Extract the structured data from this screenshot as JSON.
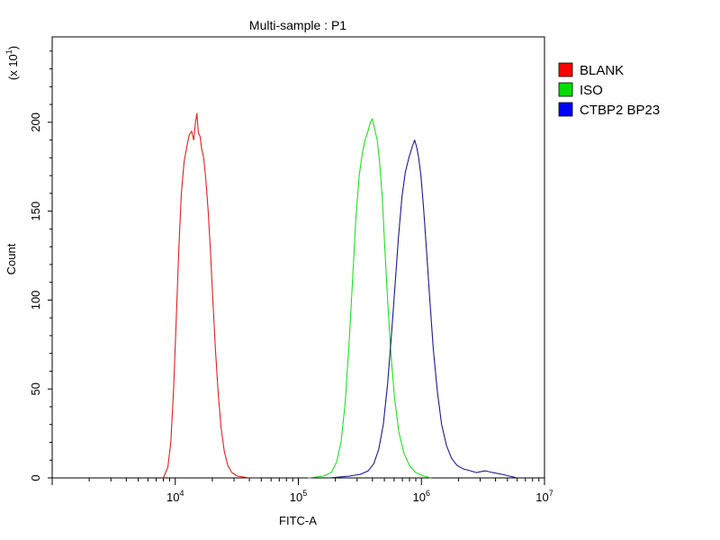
{
  "chart_data": {
    "type": "line",
    "title": "Multi-sample : P1",
    "xlabel": "FITC-A",
    "ylabel": "Count",
    "y_multiplier_label": "(x 10",
    "y_multiplier_exp": "1",
    "x_scale": "log",
    "xlim": [
      1000,
      10000000
    ],
    "ylim": [
      0,
      248
    ],
    "x_ticks": [
      {
        "value": 10000,
        "base": "10",
        "exp": "4"
      },
      {
        "value": 100000,
        "base": "10",
        "exp": "5"
      },
      {
        "value": 1000000,
        "base": "10",
        "exp": "6"
      },
      {
        "value": 10000000,
        "base": "10",
        "exp": "7"
      }
    ],
    "y_ticks": [
      {
        "value": 0,
        "label": "0"
      },
      {
        "value": 50,
        "label": "50"
      },
      {
        "value": 100,
        "label": "100"
      },
      {
        "value": 150,
        "label": "150"
      },
      {
        "value": 200,
        "label": "200"
      }
    ],
    "legend_position": "right",
    "grid": false,
    "series": [
      {
        "name": "BLANK",
        "color": "#e02020",
        "legend_color": "#ff0000",
        "points": [
          [
            8000,
            0
          ],
          [
            8700,
            6
          ],
          [
            9200,
            20
          ],
          [
            9700,
            50
          ],
          [
            10200,
            90
          ],
          [
            10700,
            130
          ],
          [
            11200,
            160
          ],
          [
            11800,
            178
          ],
          [
            12400,
            186
          ],
          [
            13000,
            193
          ],
          [
            13600,
            195
          ],
          [
            14100,
            190
          ],
          [
            14600,
            200
          ],
          [
            15000,
            205
          ],
          [
            15400,
            194
          ],
          [
            15900,
            192
          ],
          [
            16400,
            185
          ],
          [
            17000,
            180
          ],
          [
            17700,
            168
          ],
          [
            18500,
            150
          ],
          [
            19300,
            128
          ],
          [
            20200,
            100
          ],
          [
            21200,
            72
          ],
          [
            22300,
            48
          ],
          [
            23600,
            28
          ],
          [
            25000,
            15
          ],
          [
            26700,
            7
          ],
          [
            28800,
            3
          ],
          [
            32000,
            1
          ],
          [
            40000,
            0
          ]
        ]
      },
      {
        "name": "ISO",
        "color": "#20e020",
        "legend_color": "#00dd00",
        "points": [
          [
            120000,
            0
          ],
          [
            160000,
            1
          ],
          [
            185000,
            3
          ],
          [
            205000,
            9
          ],
          [
            222000,
            20
          ],
          [
            240000,
            42
          ],
          [
            258000,
            75
          ],
          [
            275000,
            110
          ],
          [
            293000,
            145
          ],
          [
            312000,
            170
          ],
          [
            330000,
            182
          ],
          [
            348000,
            190
          ],
          [
            368000,
            195
          ],
          [
            385000,
            200
          ],
          [
            400000,
            202
          ],
          [
            418000,
            196
          ],
          [
            437000,
            190
          ],
          [
            457000,
            178
          ],
          [
            480000,
            158
          ],
          [
            505000,
            128
          ],
          [
            533000,
            98
          ],
          [
            565000,
            70
          ],
          [
            605000,
            45
          ],
          [
            655000,
            26
          ],
          [
            720000,
            14
          ],
          [
            800000,
            7
          ],
          [
            900000,
            3
          ],
          [
            1050000,
            1
          ],
          [
            1200000,
            0
          ]
        ]
      },
      {
        "name": "CTBP2 BP23",
        "color": "#1a1a90",
        "legend_color": "#0000ff",
        "points": [
          [
            180000,
            0
          ],
          [
            260000,
            1
          ],
          [
            320000,
            2
          ],
          [
            370000,
            4
          ],
          [
            410000,
            8
          ],
          [
            450000,
            16
          ],
          [
            490000,
            30
          ],
          [
            530000,
            52
          ],
          [
            570000,
            80
          ],
          [
            610000,
            108
          ],
          [
            650000,
            135
          ],
          [
            695000,
            158
          ],
          [
            740000,
            172
          ],
          [
            790000,
            180
          ],
          [
            840000,
            186
          ],
          [
            880000,
            190
          ],
          [
            915000,
            186
          ],
          [
            950000,
            180
          ],
          [
            990000,
            170
          ],
          [
            1040000,
            152
          ],
          [
            1100000,
            128
          ],
          [
            1170000,
            100
          ],
          [
            1250000,
            72
          ],
          [
            1350000,
            48
          ],
          [
            1460000,
            30
          ],
          [
            1600000,
            18
          ],
          [
            1760000,
            11
          ],
          [
            1950000,
            7
          ],
          [
            2200000,
            5
          ],
          [
            2500000,
            4
          ],
          [
            2800000,
            3
          ],
          [
            3300000,
            4
          ],
          [
            3800000,
            3
          ],
          [
            4500000,
            2
          ],
          [
            5200000,
            1
          ],
          [
            6000000,
            0
          ]
        ]
      }
    ]
  }
}
